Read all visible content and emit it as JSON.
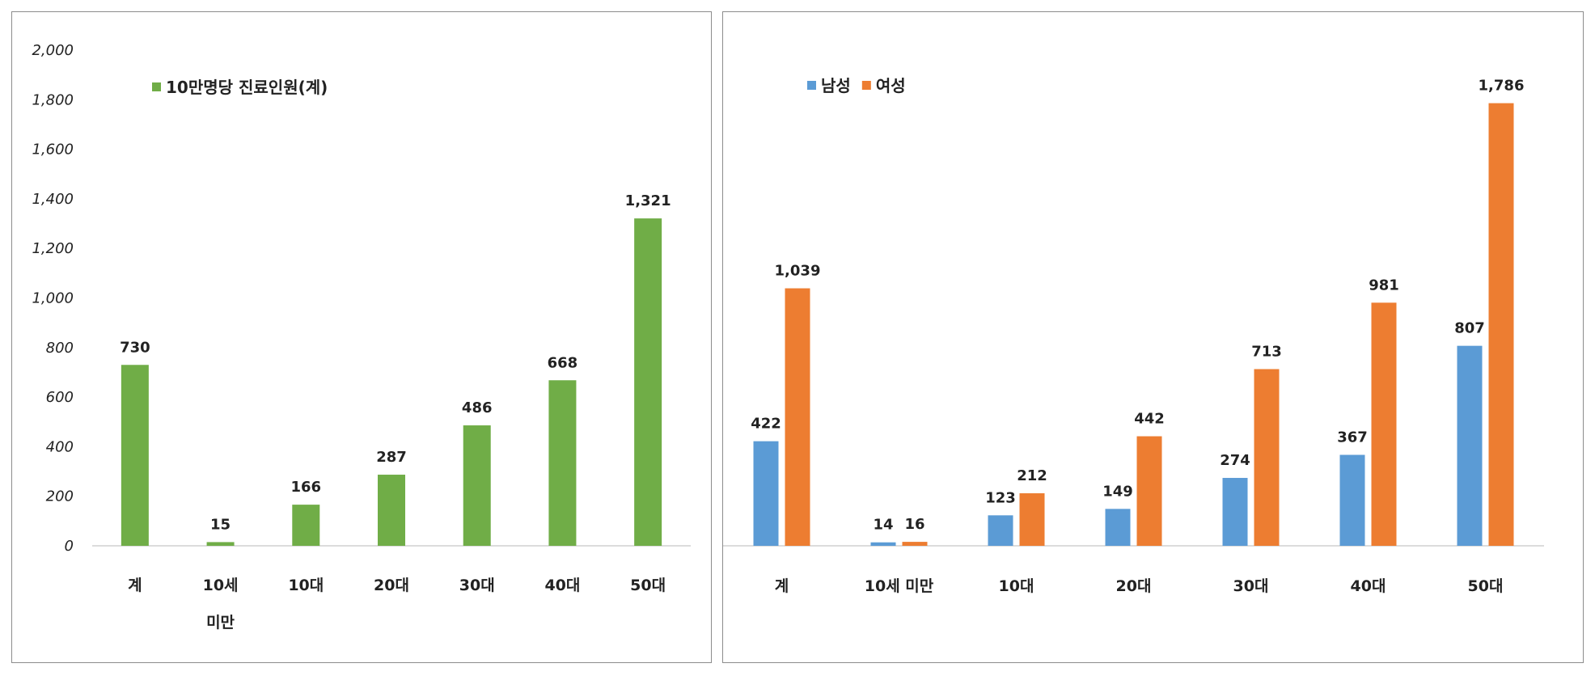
{
  "chart_data": [
    {
      "type": "bar",
      "categories": [
        "계",
        "10세 미만",
        "10대",
        "20대",
        "30대",
        "40대",
        "50대"
      ],
      "category_lines": [
        [
          "계"
        ],
        [
          "10세",
          "미만"
        ],
        [
          "10대"
        ],
        [
          "20대"
        ],
        [
          "30대"
        ],
        [
          "40대"
        ],
        [
          "50대"
        ]
      ],
      "series": [
        {
          "name": "10만명당 진료인원(계)",
          "values": [
            730,
            15,
            166,
            287,
            486,
            668,
            1321
          ],
          "color": "#70ad47"
        }
      ],
      "data_labels": [
        [
          "730",
          "15",
          "166",
          "287",
          "486",
          "668",
          "1,321"
        ]
      ],
      "ylim": [
        0,
        2000
      ],
      "yticks": [
        0,
        200,
        400,
        600,
        800,
        1000,
        1200,
        1400,
        1600,
        1800,
        2000
      ],
      "ytick_labels": [
        "0",
        "200",
        "400",
        "600",
        "800",
        "1,000",
        "1,200",
        "1,400",
        "1,600",
        "1,800",
        "2,000"
      ],
      "legend": "top-left",
      "grid": false
    },
    {
      "type": "bar",
      "categories": [
        "계",
        "10세 미만",
        "10대",
        "20대",
        "30대",
        "40대",
        "50대"
      ],
      "category_lines": [
        [
          "계"
        ],
        [
          "10세 미만"
        ],
        [
          "10대"
        ],
        [
          "20대"
        ],
        [
          "30대"
        ],
        [
          "40대"
        ],
        [
          "50대"
        ]
      ],
      "series": [
        {
          "name": "남성",
          "values": [
            422,
            14,
            123,
            149,
            274,
            367,
            807
          ],
          "color": "#5b9bd5"
        },
        {
          "name": "여성",
          "values": [
            1039,
            16,
            212,
            442,
            713,
            981,
            1786
          ],
          "color": "#ed7d31"
        }
      ],
      "data_labels": [
        [
          "422",
          "14",
          "123",
          "149",
          "274",
          "367",
          "807"
        ],
        [
          "1,039",
          "16",
          "212",
          "442",
          "713",
          "981",
          "1,786"
        ]
      ],
      "ylim": [
        0,
        2000
      ],
      "legend": "top-left",
      "grid": false
    }
  ]
}
